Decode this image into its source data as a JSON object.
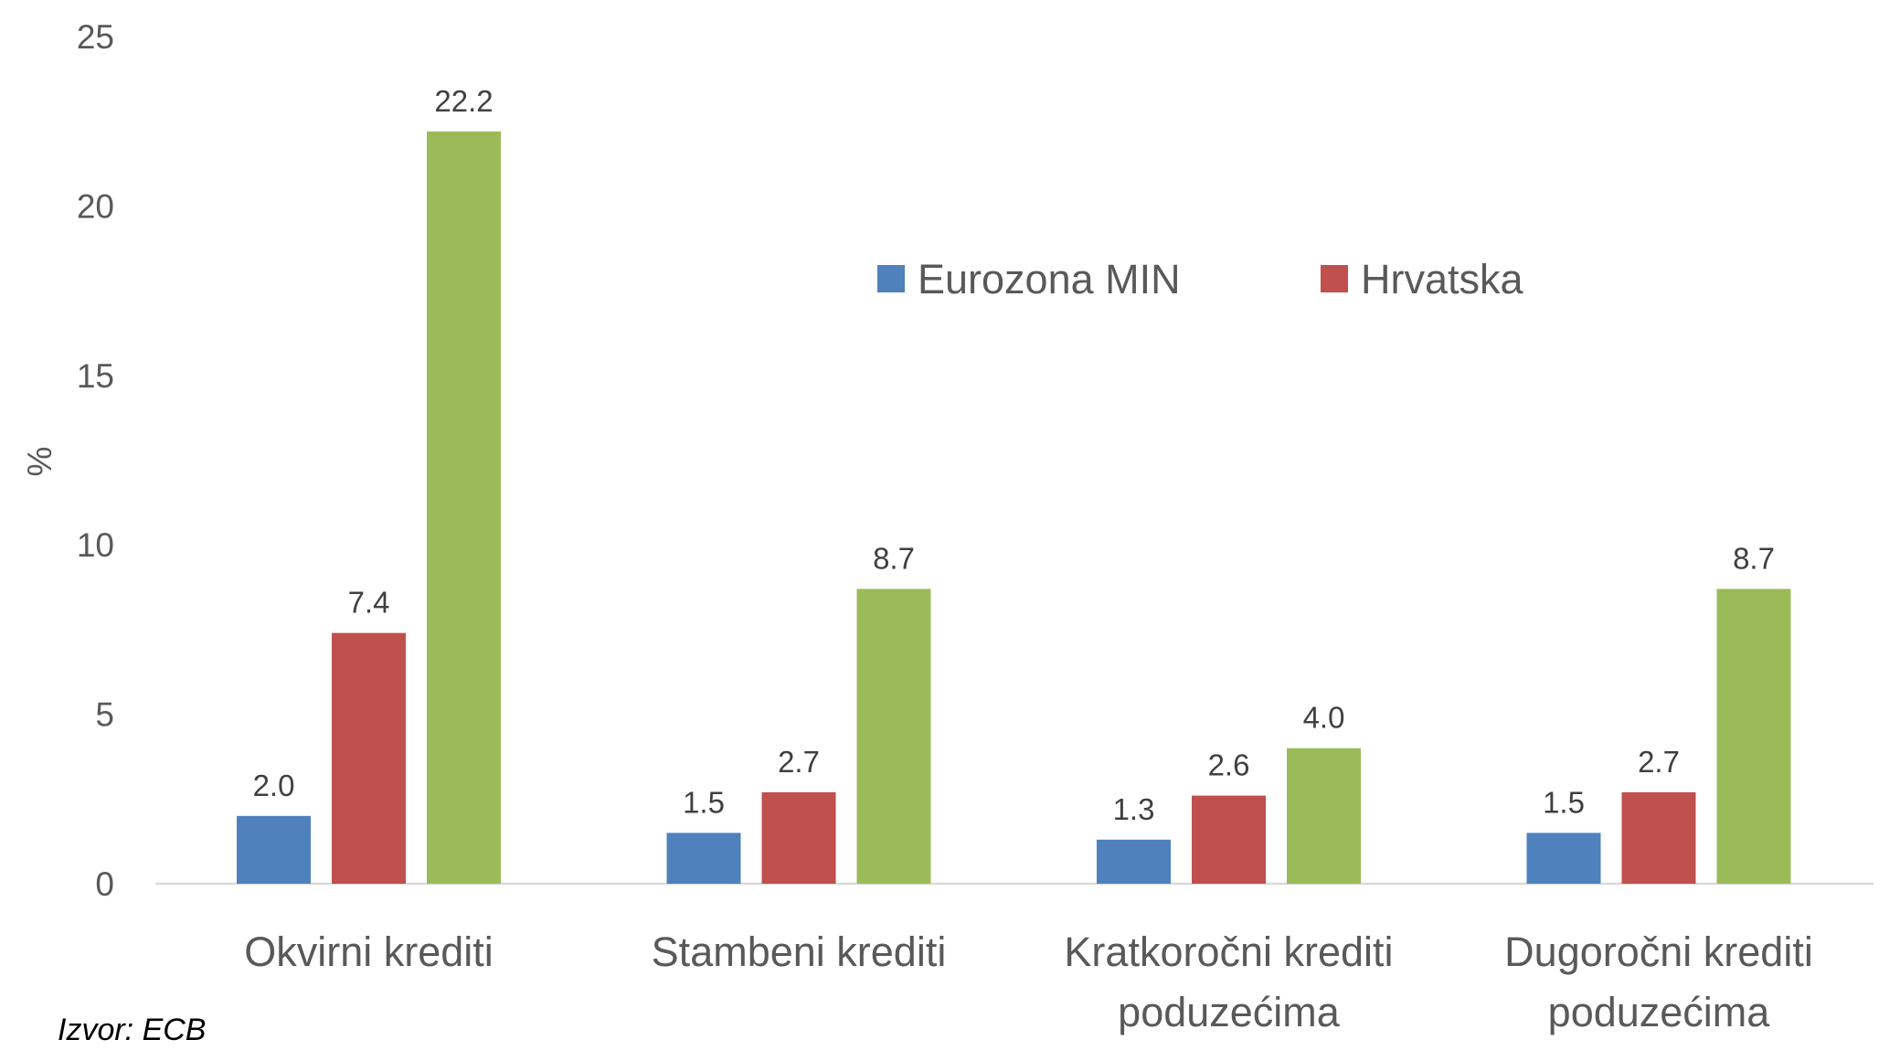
{
  "chart_data": {
    "type": "bar",
    "title": "",
    "xlabel": "",
    "ylabel": "%",
    "ylim": [
      0,
      25
    ],
    "yticks": [
      "0",
      "5",
      "10",
      "15",
      "20",
      "25"
    ],
    "categories": [
      [
        "Okvirni krediti"
      ],
      [
        "Stambeni krediti"
      ],
      [
        "Kratkoročni krediti",
        "poduzećima"
      ],
      [
        "Dugoročni krediti",
        "poduzećima"
      ]
    ],
    "series": [
      {
        "name": "Eurozona MIN",
        "color": "#4F81BD",
        "values": [
          2.0,
          1.5,
          1.3,
          1.5
        ],
        "labels": [
          "2.0",
          "1.5",
          "1.3",
          "1.5"
        ]
      },
      {
        "name": "Hrvatska",
        "color": "#C0504D",
        "values": [
          7.4,
          2.7,
          2.6,
          2.7
        ],
        "labels": [
          "7.4",
          "2.7",
          "2.6",
          "2.7"
        ]
      },
      {
        "name": null,
        "color": "#9BBB59",
        "values": [
          22.2,
          8.7,
          4.0,
          8.7
        ],
        "labels": [
          "22.2",
          "8.7",
          "4.0",
          "8.7"
        ]
      }
    ],
    "legend_position": "top-center",
    "grid": false
  },
  "source": "Izvor: ECB"
}
